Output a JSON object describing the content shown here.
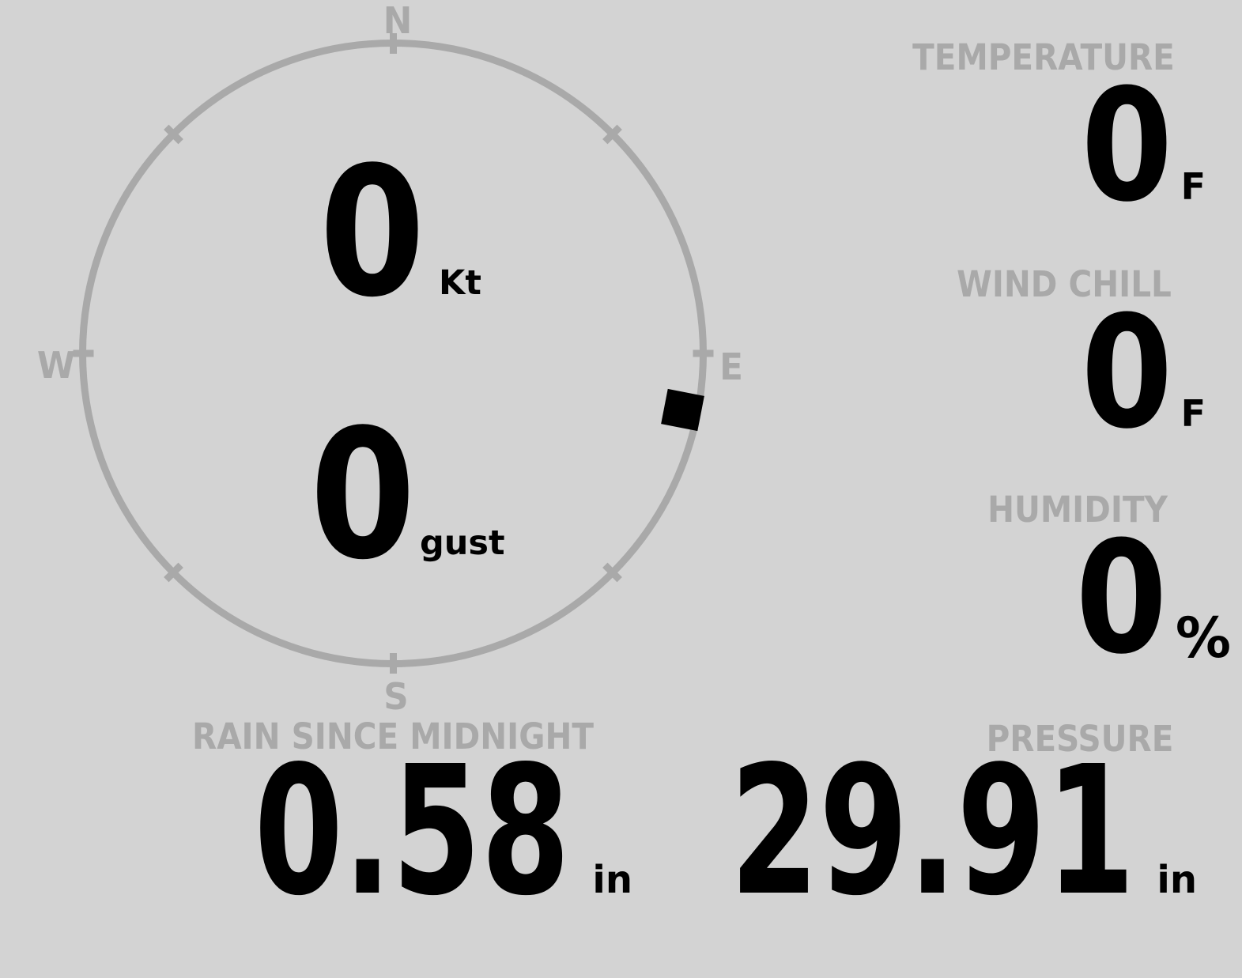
{
  "colors": {
    "background": "#d3d3d3",
    "muted": "#a9a9a9",
    "text": "#000000"
  },
  "wind": {
    "compass_points": {
      "n": "N",
      "e": "E",
      "s": "S",
      "w": "W"
    },
    "speed": {
      "value": "0",
      "unit": "Kt"
    },
    "gust": {
      "value": "0",
      "unit": "gust"
    },
    "direction_deg": 101
  },
  "panels": {
    "temperature": {
      "label": "TEMPERATURE",
      "value": "0",
      "unit": "F"
    },
    "wind_chill": {
      "label": "WIND CHILL",
      "value": "0",
      "unit": "F"
    },
    "humidity": {
      "label": "HUMIDITY",
      "value": "0",
      "unit": "%"
    },
    "rain_since_midnight": {
      "label": "RAIN SINCE MIDNIGHT",
      "value": "0.58",
      "unit": "in"
    },
    "pressure": {
      "label": "PRESSURE",
      "value": "29.91",
      "unit": "in"
    }
  }
}
